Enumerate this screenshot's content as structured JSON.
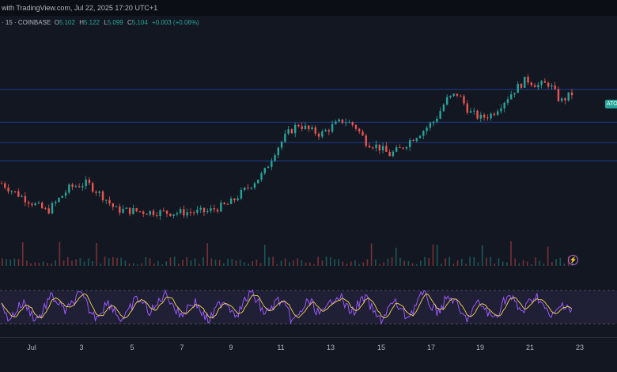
{
  "header": {
    "caption": "with TradingView.com, Jul 22, 2025 17:20 UTC+1"
  },
  "legend": {
    "prefix": "· 15 · COINBASE",
    "open_label": "O",
    "open": "5.102",
    "high_label": "H",
    "high": "5.122",
    "low_label": "L",
    "low": "5.099",
    "close_label": "C",
    "close": "5.104",
    "change": "+0.003 (+0.06%)"
  },
  "price_tag": "ATO",
  "colors": {
    "background": "#131722",
    "up": "#26a69a",
    "down": "#ef5350",
    "level_line": "#2962ff",
    "rsi": "#9b59ff",
    "rsi_ma": "#f5d94d"
  },
  "icons": {
    "alert": "lightning-icon"
  },
  "chart_data": {
    "type": "line",
    "x": [
      "Jul",
      "3",
      "5",
      "7",
      "9",
      "11",
      "13",
      "15",
      "17",
      "19",
      "21",
      "23"
    ],
    "price_path": [
      [
        0.0,
        0.3
      ],
      [
        0.02,
        0.22
      ],
      [
        0.05,
        0.12
      ],
      [
        0.08,
        0.02
      ],
      [
        0.12,
        0.26
      ],
      [
        0.15,
        0.3
      ],
      [
        0.18,
        0.16
      ],
      [
        0.2,
        0.04
      ],
      [
        0.25,
        0.02
      ],
      [
        0.3,
        0.01
      ],
      [
        0.36,
        0.02
      ],
      [
        0.4,
        0.1
      ],
      [
        0.43,
        0.25
      ],
      [
        0.46,
        0.4
      ],
      [
        0.48,
        0.62
      ],
      [
        0.5,
        0.78
      ],
      [
        0.52,
        0.88
      ],
      [
        0.54,
        0.82
      ],
      [
        0.56,
        0.78
      ],
      [
        0.58,
        0.86
      ],
      [
        0.6,
        0.92
      ],
      [
        0.62,
        0.86
      ],
      [
        0.64,
        0.7
      ],
      [
        0.66,
        0.66
      ],
      [
        0.68,
        0.58
      ],
      [
        0.7,
        0.64
      ],
      [
        0.72,
        0.74
      ],
      [
        0.74,
        0.82
      ],
      [
        0.76,
        0.92
      ],
      [
        0.78,
        1.12
      ],
      [
        0.8,
        1.18
      ],
      [
        0.82,
        1.0
      ],
      [
        0.84,
        0.94
      ],
      [
        0.86,
        0.98
      ],
      [
        0.88,
        1.1
      ],
      [
        0.9,
        1.22
      ],
      [
        0.92,
        1.32
      ],
      [
        0.94,
        1.26
      ],
      [
        0.96,
        1.28
      ],
      [
        0.98,
        1.1
      ],
      [
        1.0,
        1.18
      ]
    ],
    "level_lines": [
      1.22,
      0.9,
      0.7,
      0.52
    ],
    "rsi_levels": [
      70,
      30
    ]
  }
}
